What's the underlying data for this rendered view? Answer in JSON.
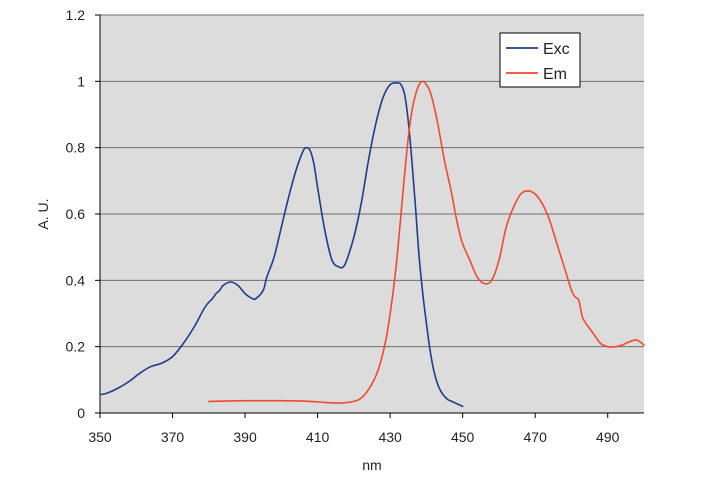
{
  "chart_data": {
    "type": "line",
    "xlabel": "nm",
    "ylabel": "A. U.",
    "xlim": [
      350,
      500
    ],
    "ylim": [
      0,
      1.2
    ],
    "x_ticks": [
      "350",
      "370",
      "390",
      "410",
      "430",
      "450",
      "470",
      "490"
    ],
    "y_ticks": [
      "0",
      "0.2",
      "0.4",
      "0.6",
      "0.8",
      "1",
      "1.2"
    ],
    "grid": "horizontal",
    "background": "#dcdcdc",
    "legend_position": "top-right",
    "series": [
      {
        "name": "Exc",
        "color": "#1f3d8c",
        "x": [
          350,
          352,
          355,
          358,
          361,
          364,
          367,
          370,
          373,
          376,
          379,
          381,
          382,
          383,
          384,
          386,
          388,
          390,
          392,
          393,
          395,
          396,
          398,
          400,
          402,
          404,
          406,
          407,
          408,
          409,
          410,
          412,
          414,
          416,
          417,
          418,
          420,
          422,
          424,
          426,
          428,
          430,
          432,
          433,
          434,
          435,
          436,
          437,
          438,
          439,
          440,
          441,
          442,
          443,
          444,
          445,
          446,
          447,
          448,
          449,
          450
        ],
        "y": [
          0.055,
          0.06,
          0.075,
          0.095,
          0.12,
          0.14,
          0.15,
          0.17,
          0.21,
          0.26,
          0.32,
          0.345,
          0.36,
          0.37,
          0.385,
          0.395,
          0.385,
          0.36,
          0.345,
          0.345,
          0.37,
          0.41,
          0.47,
          0.56,
          0.65,
          0.73,
          0.79,
          0.8,
          0.79,
          0.75,
          0.68,
          0.55,
          0.46,
          0.44,
          0.44,
          0.46,
          0.53,
          0.63,
          0.76,
          0.87,
          0.95,
          0.99,
          0.995,
          0.99,
          0.96,
          0.88,
          0.76,
          0.62,
          0.47,
          0.36,
          0.27,
          0.19,
          0.13,
          0.09,
          0.065,
          0.05,
          0.04,
          0.035,
          0.03,
          0.025,
          0.02
        ]
      },
      {
        "name": "Em",
        "color": "#f04a2e",
        "x": [
          380,
          390,
          400,
          408,
          412,
          416,
          420,
          422,
          424,
          426,
          427,
          428,
          429,
          430,
          431,
          432,
          433,
          434,
          435,
          436,
          437,
          438,
          439,
          440,
          441,
          442,
          443,
          444,
          445,
          446,
          447,
          448,
          449,
          450,
          452,
          454,
          456,
          458,
          460,
          462,
          464,
          466,
          468,
          470,
          472,
          474,
          476,
          478,
          480,
          481,
          482,
          483,
          484,
          486,
          488,
          490,
          492,
          494,
          496,
          498,
          500
        ],
        "y": [
          0.035,
          0.037,
          0.037,
          0.035,
          0.032,
          0.03,
          0.035,
          0.045,
          0.07,
          0.11,
          0.14,
          0.18,
          0.23,
          0.3,
          0.38,
          0.48,
          0.6,
          0.72,
          0.83,
          0.91,
          0.96,
          0.99,
          1.0,
          0.99,
          0.97,
          0.93,
          0.88,
          0.82,
          0.76,
          0.71,
          0.66,
          0.6,
          0.55,
          0.51,
          0.46,
          0.41,
          0.39,
          0.4,
          0.46,
          0.56,
          0.62,
          0.66,
          0.67,
          0.66,
          0.63,
          0.58,
          0.51,
          0.44,
          0.37,
          0.35,
          0.34,
          0.29,
          0.27,
          0.24,
          0.21,
          0.2,
          0.2,
          0.205,
          0.215,
          0.22,
          0.205
        ]
      }
    ]
  }
}
